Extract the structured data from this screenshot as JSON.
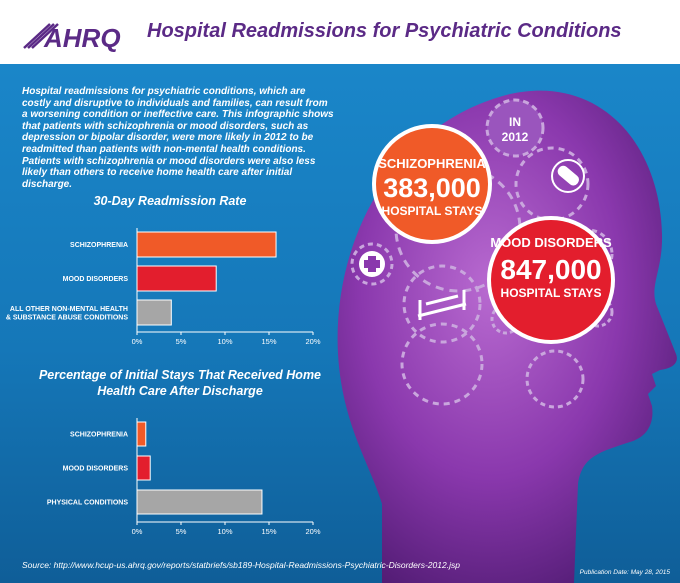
{
  "header": {
    "logo_text": "AHRQ",
    "title": "Hospital Readmissions for Psychiatric Conditions"
  },
  "intro_text": "Hospital readmissions for psychiatric conditions, which are costly and disruptive to individuals and families, can result from a worsening condition or ineffective care. This infographic shows that patients with schizophrenia or mood disorders, such as depression or bipolar disorder, were more likely in 2012 to be readmitted than patients with non-mental health conditions. Patients with schizophrenia or mood disorders were also less likely than others to receive home health care after initial discharge.",
  "head_graphic": {
    "year_label": "IN 2012",
    "schizophrenia": {
      "label": "SCHIZOPHRENIA",
      "value": "383,000",
      "sub": "HOSPITAL STAYS"
    },
    "mood": {
      "label": "MOOD DISORDERS",
      "value": "847,000",
      "sub": "HOSPITAL STAYS"
    }
  },
  "chart_data": [
    {
      "type": "bar",
      "orientation": "horizontal",
      "title": "30-Day Readmission Rate",
      "categories": [
        "SCHIZOPHRENIA",
        "MOOD DISORDERS",
        "ALL OTHER NON-MENTAL HEALTH & SUBSTANCE ABUSE CONDITIONS"
      ],
      "values": [
        15.8,
        9.0,
        3.9
      ],
      "unit": "%",
      "xlim": [
        0,
        20
      ],
      "ticks": [
        "0%",
        "5%",
        "10%",
        "15%",
        "20%"
      ],
      "bar_colors": [
        "#f05a28",
        "#e31e2d",
        "#a6a6a6"
      ],
      "grid": false
    },
    {
      "type": "bar",
      "orientation": "horizontal",
      "title": "Percentage of Initial Stays That Received Home Health Care After Discharge",
      "categories": [
        "SCHIZOPHRENIA",
        "MOOD DISORDERS",
        "PHYSICAL CONDITIONS"
      ],
      "values": [
        1.0,
        1.5,
        14.2
      ],
      "unit": "%",
      "xlim": [
        0,
        20
      ],
      "ticks": [
        "0%",
        "5%",
        "10%",
        "15%",
        "20%"
      ],
      "bar_colors": [
        "#f05a28",
        "#e31e2d",
        "#a6a6a6"
      ],
      "grid": false
    }
  ],
  "footer": {
    "source": "Source: http://www.hcup-us.ahrq.gov/reports/statbriefs/sb189-Hospital-Readmissions-Psychiatric-Disorders-2012.jsp",
    "pub_date": "Publication Date: May 28, 2015"
  },
  "colors": {
    "brand_purple": "#5b2a86",
    "background_blue": "#1a86c9",
    "head_purple": "#7d2fa0",
    "bubble_orange": "#f05a28",
    "bubble_red": "#e31e2d"
  },
  "icons": [
    "ahrq-logo",
    "gear-icon",
    "medical-cross-icon",
    "hospital-bed-icon",
    "pill-icon"
  ]
}
